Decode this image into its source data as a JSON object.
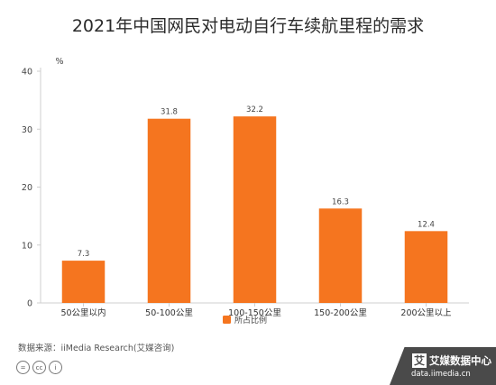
{
  "chart_data": {
    "type": "bar",
    "title": "2021年中国网民对电动自行车续航里程的需求",
    "ylabel": "%",
    "xlabel": "",
    "ylim": [
      0,
      40
    ],
    "yticks": [
      0,
      10,
      20,
      30,
      40
    ],
    "categories": [
      "50公里以内",
      "50-100公里",
      "100-150公里",
      "150-200公里",
      "200公里以上"
    ],
    "series": [
      {
        "name": "所占比例",
        "values": [
          7.3,
          31.8,
          32.2,
          16.3,
          12.4
        ],
        "color": "#f5751f"
      }
    ],
    "grid": false,
    "legend_position": "bottom"
  },
  "footer": {
    "source": "数据来源：iiMedia Research(艾媒咨询)",
    "license_icons": [
      "=",
      "cc",
      "i"
    ]
  },
  "brand": {
    "icon_text": "艾",
    "name": "艾媒数据中心",
    "url": "data.iimedia.cn",
    "background": "#4a4a4a"
  }
}
